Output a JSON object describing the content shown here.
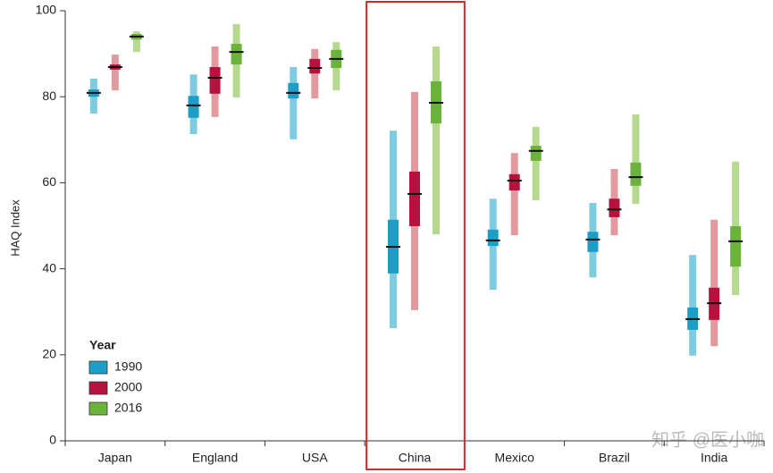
{
  "chart_data": {
    "type": "range",
    "y_label": "HAQ Index",
    "categories": [
      "Japan",
      "England",
      "USA",
      "China",
      "Mexico",
      "Brazil",
      "India"
    ],
    "ylim": [
      0,
      100
    ],
    "yticks": [
      0,
      20,
      40,
      60,
      80,
      100
    ],
    "legend_title": "Year",
    "legend_position": "lower-left",
    "highlight_index": 3,
    "highlight_color": "#d9262c",
    "watermark": "知乎 @医小咖",
    "series": [
      {
        "name": "1990",
        "color": "#1e9ec6",
        "light_color": "#7ecce0",
        "values": [
          80.9,
          78.0,
          80.9,
          45.1,
          46.6,
          46.8,
          28.3
        ],
        "inner_low": [
          80.0,
          75.1,
          79.6,
          38.9,
          45.3,
          43.9,
          25.8
        ],
        "inner_high": [
          81.7,
          80.2,
          83.2,
          51.4,
          49.1,
          48.6,
          31.0
        ],
        "outer_low": [
          76.1,
          71.3,
          70.1,
          26.2,
          35.1,
          38.0,
          19.8
        ],
        "outer_high": [
          84.2,
          85.2,
          86.9,
          72.1,
          56.3,
          55.3,
          43.2
        ]
      },
      {
        "name": "2000",
        "color": "#b5123f",
        "light_color": "#e39a9e",
        "values": [
          86.9,
          84.4,
          86.7,
          57.4,
          60.5,
          53.8,
          32.0
        ],
        "inner_low": [
          86.3,
          80.7,
          85.4,
          49.9,
          58.2,
          52.0,
          28.1
        ],
        "inner_high": [
          87.5,
          86.9,
          88.8,
          62.6,
          62.0,
          56.3,
          35.6
        ],
        "outer_low": [
          81.5,
          75.3,
          79.6,
          30.4,
          47.8,
          47.8,
          22.0
        ],
        "outer_high": [
          89.8,
          91.7,
          91.1,
          81.1,
          66.9,
          63.2,
          51.4
        ]
      },
      {
        "name": "2016",
        "color": "#6bb33b",
        "light_color": "#b7d98f",
        "values": [
          94.0,
          90.4,
          88.8,
          78.6,
          67.4,
          61.3,
          46.4
        ],
        "inner_low": [
          93.3,
          87.5,
          86.7,
          73.8,
          65.1,
          59.3,
          40.5
        ],
        "inner_high": [
          94.6,
          92.3,
          90.9,
          83.6,
          68.6,
          64.7,
          49.9
        ],
        "outer_low": [
          90.4,
          79.8,
          81.5,
          48.0,
          55.9,
          55.1,
          33.9
        ],
        "outer_high": [
          95.2,
          96.9,
          92.7,
          91.7,
          73.0,
          75.9,
          64.9
        ]
      }
    ]
  }
}
